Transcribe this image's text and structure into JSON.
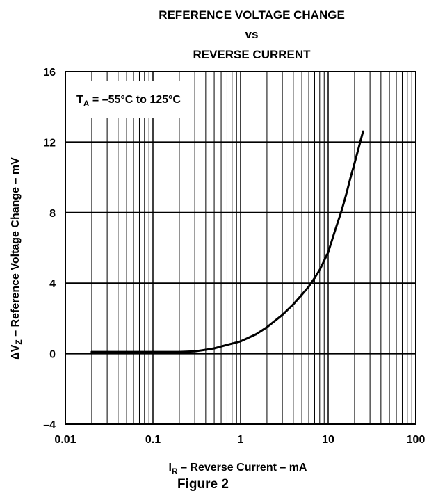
{
  "chart_data": {
    "type": "line",
    "title_lines": [
      "REFERENCE VOLTAGE CHANGE",
      "vs",
      "REVERSE CURRENT"
    ],
    "xlabel": {
      "symbol": "I",
      "subscript": "R",
      "text": " – Reverse Current – mA"
    },
    "ylabel": {
      "symbol": "ΔV",
      "subscript": "Z",
      "text": " – Reference Voltage Change – mV"
    },
    "x_scale": "log",
    "xlim": [
      0.01,
      100
    ],
    "ylim": [
      -4,
      16
    ],
    "x_ticks": [
      {
        "value": 0.01,
        "label": "0.01"
      },
      {
        "value": 0.1,
        "label": "0.1"
      },
      {
        "value": 1,
        "label": "1"
      },
      {
        "value": 10,
        "label": "10"
      },
      {
        "value": 100,
        "label": "100"
      }
    ],
    "y_ticks": [
      {
        "value": -4,
        "label": "–4"
      },
      {
        "value": 0,
        "label": "0"
      },
      {
        "value": 4,
        "label": "4"
      },
      {
        "value": 8,
        "label": "8"
      },
      {
        "value": 12,
        "label": "12"
      },
      {
        "value": 16,
        "label": "16"
      }
    ],
    "grid": true,
    "annotation": {
      "symbol": "T",
      "subscript": "A",
      "text": " = –55°C to 125°C"
    },
    "series": [
      {
        "x": [
          0.02,
          0.05,
          0.1,
          0.2,
          0.3,
          0.4,
          0.5,
          0.7,
          1,
          1.5,
          2,
          3,
          4,
          5,
          6,
          7,
          8,
          10,
          12,
          14,
          16,
          18,
          20,
          25
        ],
        "y": [
          0.1,
          0.1,
          0.1,
          0.1,
          0.13,
          0.22,
          0.3,
          0.5,
          0.7,
          1.1,
          1.5,
          2.2,
          2.8,
          3.35,
          3.8,
          4.3,
          4.75,
          5.75,
          7.0,
          8.0,
          9.0,
          10.0,
          10.8,
          12.6
        ]
      }
    ],
    "caption": "Figure 2",
    "colors": {
      "line": "#000000",
      "grid": "#000000",
      "background": "#ffffff"
    }
  }
}
